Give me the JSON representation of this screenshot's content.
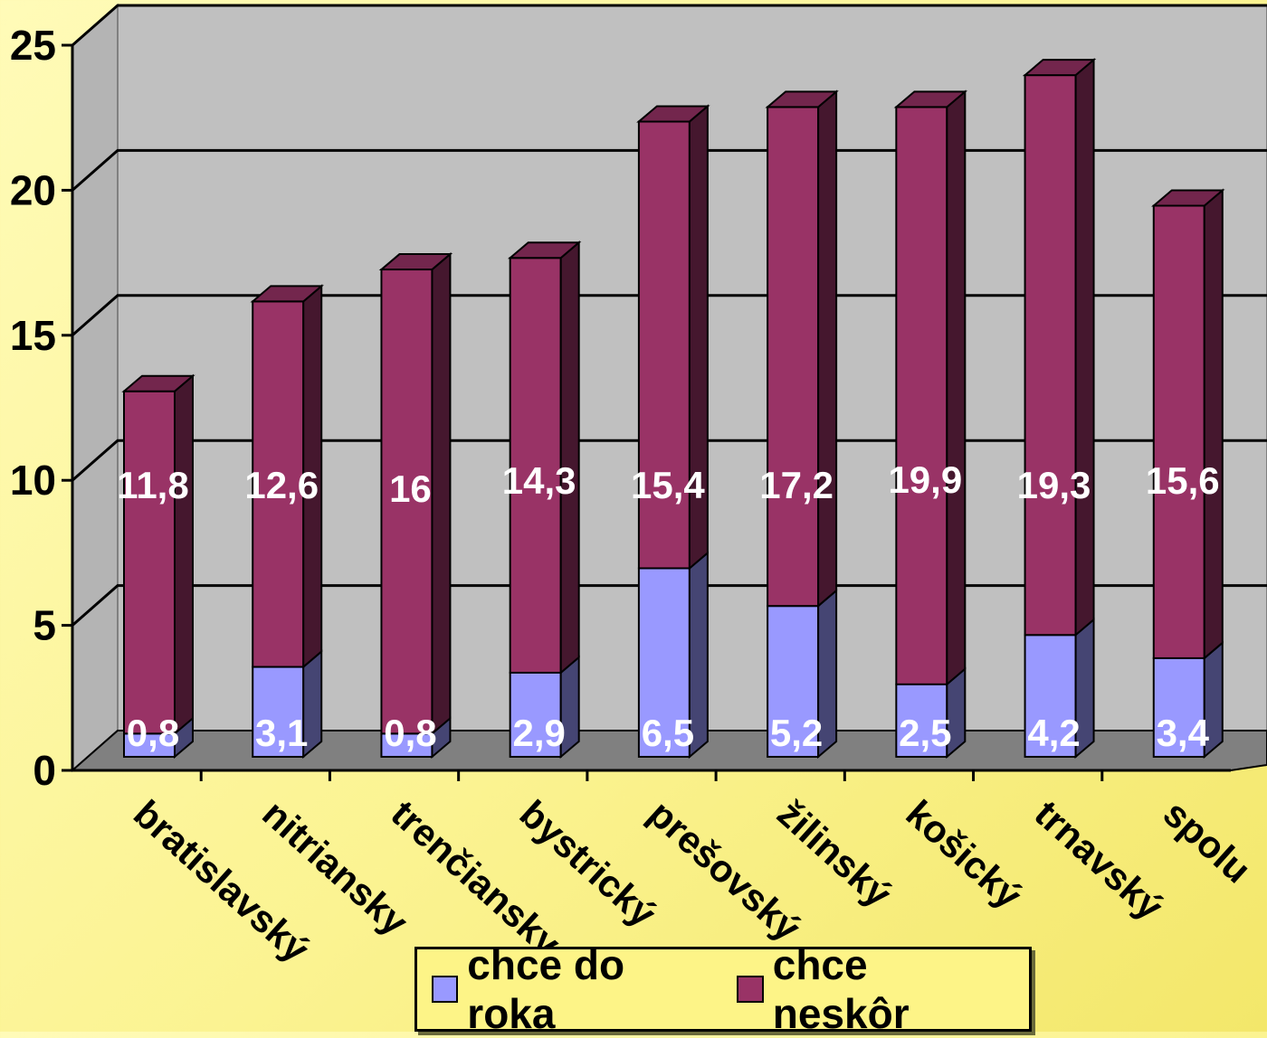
{
  "chart_data": {
    "type": "bar",
    "stacked": true,
    "three_d": true,
    "categories": [
      "bratislavský",
      "nitriansky",
      "trenčiansky",
      "bystrický",
      "prešovský",
      "žilinský",
      "košický",
      "trnavský",
      "spolu"
    ],
    "series": [
      {
        "name": "chce do roka",
        "values": [
          0.8,
          3.1,
          0.8,
          2.9,
          6.5,
          5.2,
          2.5,
          4.2,
          3.4
        ],
        "labels": [
          "0,8",
          "3,1",
          "0,8",
          "2,9",
          "6,5",
          "5,2",
          "2,5",
          "4,2",
          "3,4"
        ],
        "color": "#9999ff"
      },
      {
        "name": "chce neskôr",
        "values": [
          11.8,
          12.6,
          16,
          14.3,
          15.4,
          17.2,
          19.9,
          19.3,
          15.6
        ],
        "labels": [
          "11,8",
          "12,6",
          "16",
          "14,3",
          "15,4",
          "17,2",
          "19,9",
          "19,3",
          "15,6"
        ],
        "color": "#993366"
      }
    ],
    "yticks": [
      "0",
      "5",
      "10",
      "15",
      "20",
      "25"
    ],
    "ylim": [
      0,
      25
    ],
    "grid": true,
    "legend_position": "bottom",
    "background": "#fdf487",
    "wall_color": "#c0c0c0",
    "floor_color": "#808080"
  }
}
